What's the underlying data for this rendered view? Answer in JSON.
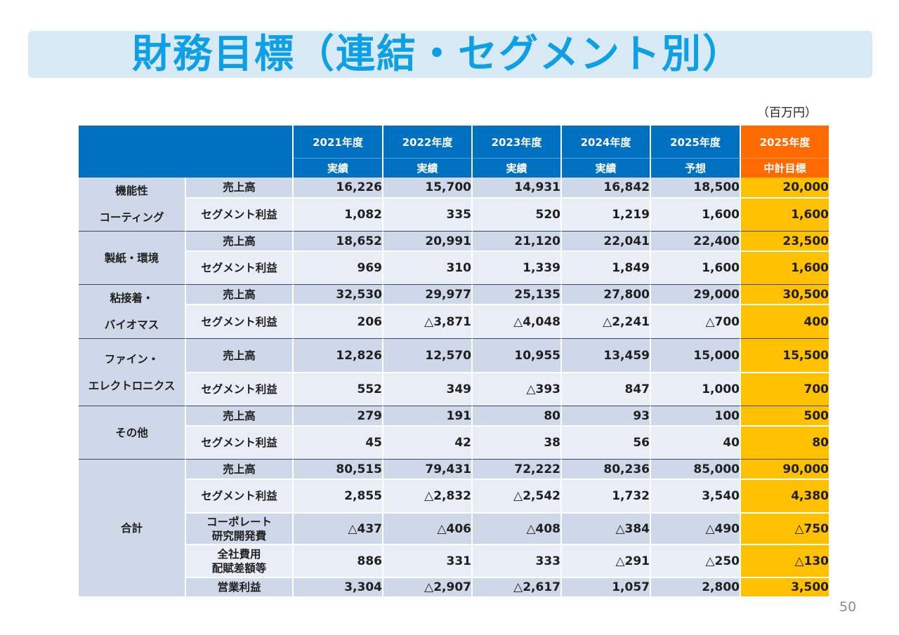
{
  "title": "財務目標（連結・セグメント別）",
  "unit": "（百万円）",
  "page_number": "50",
  "columns": [
    {
      "year": "2021年度",
      "sub": "実績"
    },
    {
      "year": "2022年度",
      "sub": "実績"
    },
    {
      "year": "2023年度",
      "sub": "実績"
    },
    {
      "year": "2024年度",
      "sub": "実績"
    },
    {
      "year": "2025年度",
      "sub": "予想"
    },
    {
      "year": "2025年度",
      "sub": "中計目標"
    }
  ],
  "segments": [
    {
      "name_lines": [
        "機能性",
        "コーティング"
      ],
      "rows": [
        {
          "item": "売上高",
          "values": [
            "16,226",
            "15,700",
            "14,931",
            "16,842",
            "18,500",
            "20,000"
          ]
        },
        {
          "item": "セグメント利益",
          "values": [
            "1,082",
            "335",
            "520",
            "1,219",
            "1,600",
            "1,600"
          ]
        }
      ]
    },
    {
      "name_lines": [
        "製紙・環境"
      ],
      "rows": [
        {
          "item": "売上高",
          "values": [
            "18,652",
            "20,991",
            "21,120",
            "22,041",
            "22,400",
            "23,500"
          ]
        },
        {
          "item": "セグメント利益",
          "values": [
            "969",
            "310",
            "1,339",
            "1,849",
            "1,600",
            "1,600"
          ]
        }
      ]
    },
    {
      "name_lines": [
        "粘接着・",
        "バイオマス"
      ],
      "rows": [
        {
          "item": "売上高",
          "values": [
            "32,530",
            "29,977",
            "25,135",
            "27,800",
            "29,000",
            "30,500"
          ]
        },
        {
          "item": "セグメント利益",
          "values": [
            "206",
            "△3,871",
            "△4,048",
            "△2,241",
            "△700",
            "400"
          ]
        }
      ]
    },
    {
      "name_lines": [
        "ファイン・",
        "エレクトロニクス"
      ],
      "rows": [
        {
          "item": "売上高",
          "values": [
            "12,826",
            "12,570",
            "10,955",
            "13,459",
            "15,000",
            "15,500"
          ]
        },
        {
          "item": "セグメント利益",
          "values": [
            "552",
            "349",
            "△393",
            "847",
            "1,000",
            "700"
          ]
        }
      ]
    },
    {
      "name_lines": [
        "その他"
      ],
      "rows": [
        {
          "item": "売上高",
          "values": [
            "279",
            "191",
            "80",
            "93",
            "100",
            "500"
          ]
        },
        {
          "item": "セグメント利益",
          "values": [
            "45",
            "42",
            "38",
            "56",
            "40",
            "80"
          ]
        }
      ]
    },
    {
      "name_lines": [
        "合計"
      ],
      "rows": [
        {
          "item": "売上高",
          "values": [
            "80,515",
            "79,431",
            "72,222",
            "80,236",
            "85,000",
            "90,000"
          ]
        },
        {
          "item": "セグメント利益",
          "values": [
            "2,855",
            "△2,832",
            "△2,542",
            "1,732",
            "3,540",
            "4,380"
          ]
        },
        {
          "item_lines": [
            "コーポレート",
            "研究開発費"
          ],
          "values": [
            "△437",
            "△406",
            "△408",
            "△384",
            "△490",
            "△750"
          ]
        },
        {
          "item_lines": [
            "全社費用",
            "配賦差額等"
          ],
          "values": [
            "886",
            "331",
            "333",
            "△291",
            "△250",
            "△130"
          ]
        },
        {
          "item": "営業利益",
          "values": [
            "3,304",
            "△2,907",
            "△2,617",
            "1,057",
            "2,800",
            "3,500"
          ]
        }
      ]
    }
  ],
  "colors": {
    "title": "#0ea0e6",
    "title_bg": "#d9eaf7",
    "header": "#0070c0",
    "target_header": "#ff6a00",
    "target_col": "#ffc000",
    "row_dark": "#cfd8e8",
    "row_light": "#e9edf5"
  }
}
